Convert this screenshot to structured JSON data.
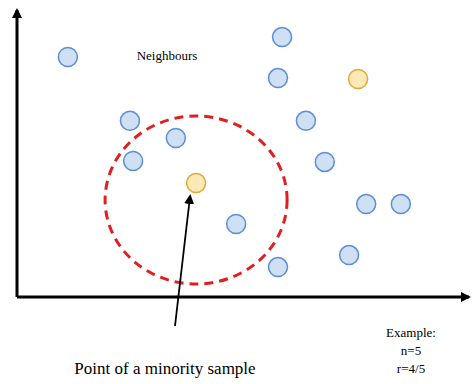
{
  "chart_data": {
    "type": "scatter",
    "xlim": [
      0,
      100
    ],
    "ylim": [
      0,
      100
    ],
    "tick_labels": false,
    "grid": false,
    "marker": "circle",
    "series": [
      {
        "color": "#cfe0f5",
        "x": [
          11.3,
          58.9,
          58.0,
          64.2,
          68.4,
          77.6,
          85.3,
          73.8,
          58.0,
          48.7,
          35.3,
          25.1,
          25.8
        ],
        "values": [
          84.2,
          91.2,
          76.8,
          61.8,
          47.4,
          32.6,
          32.6,
          14.7,
          10.5,
          25.6,
          55.8,
          61.8,
          47.7
        ]
      },
      {
        "color": "#fde9b5",
        "x": [
          75.8,
          39.8
        ],
        "values": [
          76.5,
          40.0
        ]
      }
    ],
    "annotations": [
      "Neighbours",
      "Point of a minority sample",
      "Example:",
      "n=5",
      "r=4/5"
    ]
  }
}
